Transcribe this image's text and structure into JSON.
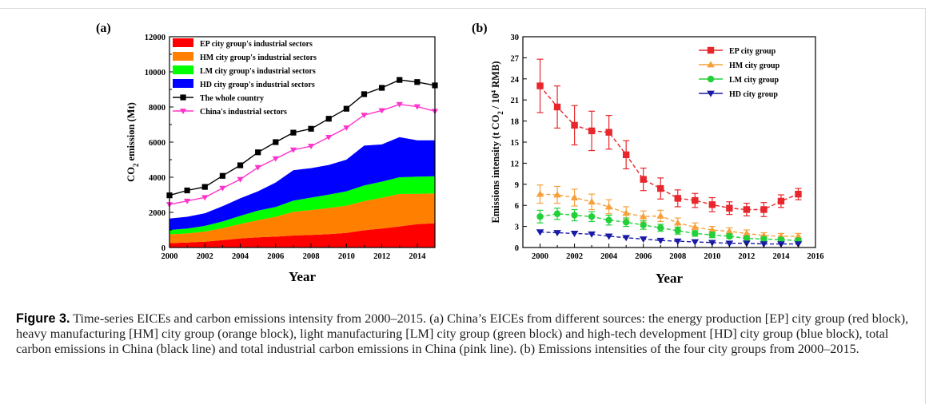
{
  "figure": {
    "caption_label": "Figure 3.",
    "caption_text": " Time-series EICEs and carbon emissions intensity from 2000–2015. (a) China’s EICEs from different sources: the energy production [EP] city group (red block), heavy manufacturing [HM] city group (orange block), light manufacturing [LM] city group (green block) and high-tech development [HD] city group (blue block), total carbon emissions in China (black line) and total industrial carbon emissions in China (pink line). (b) Emissions intensities of the four city groups from 2000–2015."
  },
  "chart_data": [
    {
      "type": "area",
      "panel_label": "(a)",
      "xlabel": "Year",
      "ylabel": "CO2 emission (Mt)",
      "xlim": [
        2000,
        2015
      ],
      "ylim": [
        0,
        12000
      ],
      "x_ticks": [
        2000,
        2002,
        2004,
        2006,
        2008,
        2010,
        2012,
        2014
      ],
      "y_ticks": [
        0,
        2000,
        4000,
        6000,
        8000,
        10000,
        12000
      ],
      "stacked": true,
      "legend_position": "top-left",
      "x": [
        2000,
        2001,
        2002,
        2003,
        2004,
        2005,
        2006,
        2007,
        2008,
        2009,
        2010,
        2011,
        2012,
        2013,
        2014,
        2015
      ],
      "stacked_series": [
        {
          "name": "EP city group's industrial sectors",
          "color": "#ff0000",
          "values": [
            250,
            280,
            330,
            420,
            520,
            580,
            620,
            680,
            720,
            760,
            830,
            980,
            1080,
            1200,
            1330,
            1380
          ]
        },
        {
          "name": "HM city group's industrial sectors",
          "color": "#ff8000",
          "values": [
            500,
            520,
            580,
            680,
            820,
            980,
            1130,
            1350,
            1410,
            1490,
            1550,
            1660,
            1750,
            1850,
            1730,
            1700
          ]
        },
        {
          "name": "LM city group's industrial sectors",
          "color": "#00ff00",
          "values": [
            250,
            280,
            320,
            380,
            460,
            540,
            560,
            640,
            710,
            760,
            820,
            890,
            920,
            950,
            970,
            980
          ]
        },
        {
          "name": "HD city group's industrial sectors",
          "color": "#0000ff",
          "values": [
            650,
            670,
            720,
            870,
            1000,
            1100,
            1390,
            1730,
            1680,
            1690,
            1800,
            2270,
            2120,
            2280,
            2070,
            2040
          ]
        }
      ],
      "line_series": [
        {
          "name": "The whole country",
          "color": "#000000",
          "marker": "square",
          "values": [
            2970,
            3250,
            3450,
            4080,
            4680,
            5420,
            6000,
            6540,
            6760,
            7330,
            7900,
            8730,
            9090,
            9540,
            9420,
            9230
          ]
        },
        {
          "name": "China's industrial sectors",
          "color": "#ff33cc",
          "marker": "triangle-down",
          "values": [
            2450,
            2650,
            2850,
            3380,
            3880,
            4560,
            5060,
            5560,
            5770,
            6280,
            6820,
            7540,
            7800,
            8150,
            8020,
            7760
          ]
        }
      ]
    },
    {
      "type": "line",
      "panel_label": "(b)",
      "xlabel": "Year",
      "ylabel": "Emissions intensity (t CO2 / 10^4 RMB)",
      "xlim": [
        1999,
        2016
      ],
      "ylim": [
        0,
        30
      ],
      "x_ticks": [
        2000,
        2002,
        2004,
        2006,
        2008,
        2010,
        2012,
        2014,
        2016
      ],
      "y_ticks": [
        0,
        3,
        6,
        9,
        12,
        15,
        18,
        21,
        24,
        27,
        30
      ],
      "legend_position": "top-right",
      "x": [
        2000,
        2001,
        2002,
        2003,
        2004,
        2005,
        2006,
        2007,
        2008,
        2009,
        2010,
        2011,
        2012,
        2013,
        2014,
        2015
      ],
      "series": [
        {
          "name": "EP city group",
          "color": "#e8262b",
          "marker": "square",
          "values": [
            23.0,
            20.0,
            17.4,
            16.6,
            16.4,
            13.2,
            9.7,
            8.4,
            7.0,
            6.7,
            6.1,
            5.6,
            5.4,
            5.4,
            6.6,
            7.6
          ],
          "errors": [
            3.8,
            3.0,
            2.8,
            2.8,
            2.4,
            2.0,
            1.6,
            1.5,
            1.2,
            1.0,
            1.0,
            0.9,
            0.9,
            1.0,
            0.9,
            0.8
          ]
        },
        {
          "name": "HM city group",
          "color": "#f6a03a",
          "marker": "triangle-up",
          "values": [
            7.6,
            7.5,
            7.1,
            6.5,
            5.8,
            4.9,
            4.4,
            4.5,
            3.5,
            2.9,
            2.5,
            2.3,
            2.0,
            1.7,
            1.6,
            1.6
          ],
          "errors": [
            1.3,
            1.2,
            1.2,
            1.1,
            1.0,
            0.9,
            0.8,
            0.8,
            0.7,
            0.6,
            0.5,
            0.5,
            0.5,
            0.4,
            0.4,
            0.4
          ]
        },
        {
          "name": "LM city group",
          "color": "#22d03a",
          "marker": "circle",
          "values": [
            4.4,
            4.8,
            4.6,
            4.4,
            3.9,
            3.6,
            3.2,
            2.8,
            2.4,
            2.0,
            1.8,
            1.6,
            1.3,
            1.2,
            1.1,
            1.0
          ],
          "errors": [
            0.9,
            0.8,
            0.8,
            0.7,
            0.7,
            0.6,
            0.6,
            0.5,
            0.5,
            0.4,
            0.4,
            0.3,
            0.3,
            0.3,
            0.3,
            0.3
          ]
        },
        {
          "name": "HD city group",
          "color": "#1a1aa8",
          "marker": "triangle-down",
          "values": [
            2.2,
            2.1,
            2.0,
            1.9,
            1.6,
            1.4,
            1.2,
            1.0,
            0.9,
            0.8,
            0.7,
            0.6,
            0.6,
            0.5,
            0.5,
            0.5
          ],
          "errors": [
            0,
            0,
            0,
            0,
            0,
            0,
            0,
            0,
            0,
            0,
            0,
            0,
            0,
            0,
            0,
            0
          ]
        }
      ]
    }
  ]
}
